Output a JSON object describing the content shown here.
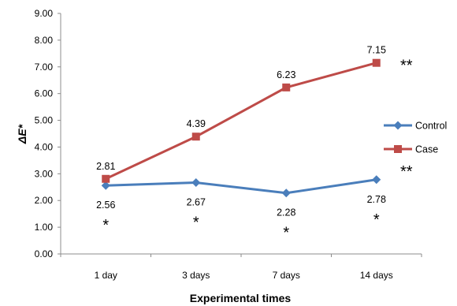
{
  "chart_data": {
    "type": "line",
    "categories": [
      "1 day",
      "3 days",
      "7 days",
      "14 days"
    ],
    "series": [
      {
        "name": "Control",
        "values": [
          2.56,
          2.67,
          2.28,
          2.78
        ],
        "color": "#4a7ebb",
        "marker": "diamond",
        "labels": [
          "2.56",
          "2.67",
          "2.28",
          "2.78"
        ]
      },
      {
        "name": "Case",
        "values": [
          2.81,
          4.39,
          6.23,
          7.15
        ],
        "color": "#be4b48",
        "marker": "square",
        "labels": [
          "2.81",
          "4.39",
          "6.23",
          "7.15"
        ]
      }
    ],
    "xlabel": "Experimental times",
    "ylabel": "ΔE*",
    "ylim": [
      0,
      9
    ],
    "yticks": [
      "0.00",
      "1.00",
      "2.00",
      "3.00",
      "4.00",
      "5.00",
      "6.00",
      "7.00",
      "8.00",
      "9.00"
    ],
    "legend_position": "right",
    "grid": false,
    "annotations": {
      "control_points": [
        "*",
        "*",
        "*",
        "*"
      ],
      "case_end": "**",
      "control_end": "**"
    }
  }
}
